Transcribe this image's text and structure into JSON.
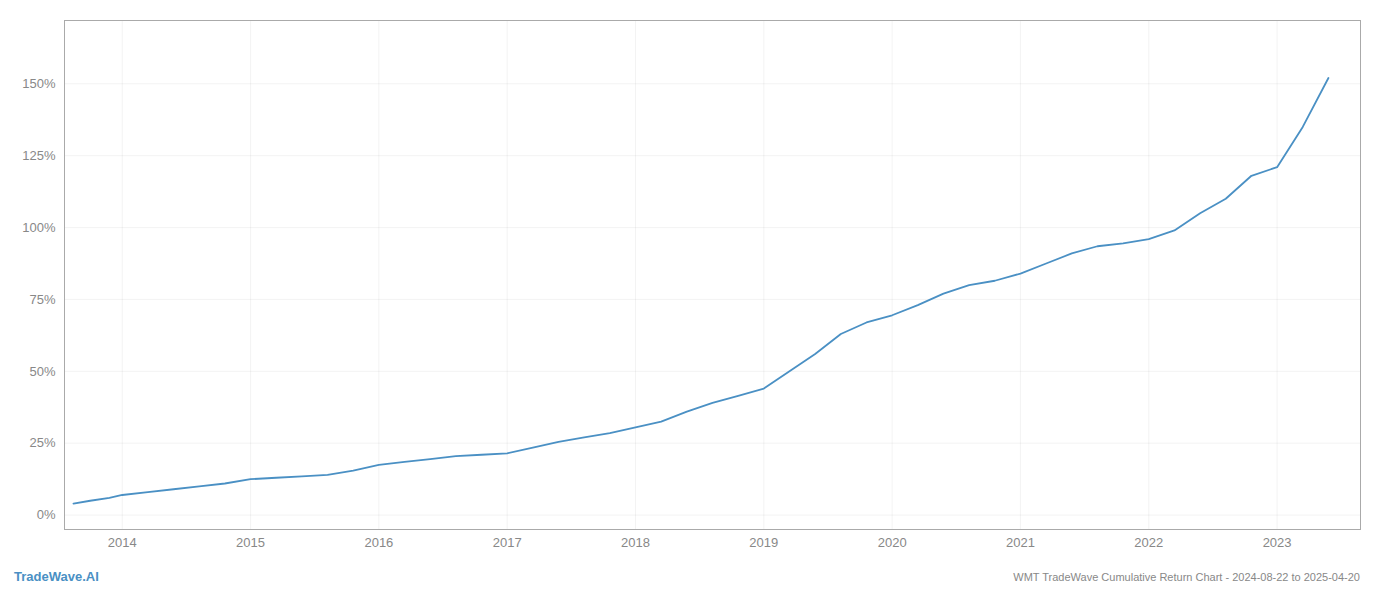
{
  "chart_data": {
    "type": "line",
    "title": "WMT TradeWave Cumulative Return Chart - 2024-08-22 to 2025-04-20",
    "annotations": [
      "TradeWave.AI"
    ],
    "color": "#4a90c4",
    "x": [
      2013.62,
      2013.75,
      2013.9,
      2014.0,
      2014.2,
      2014.4,
      2014.6,
      2014.8,
      2015.0,
      2015.2,
      2015.4,
      2015.6,
      2015.8,
      2016.0,
      2016.2,
      2016.4,
      2016.6,
      2016.8,
      2017.0,
      2017.2,
      2017.4,
      2017.6,
      2017.8,
      2018.0,
      2018.2,
      2018.4,
      2018.6,
      2018.8,
      2019.0,
      2019.2,
      2019.4,
      2019.6,
      2019.8,
      2020.0,
      2020.2,
      2020.4,
      2020.6,
      2020.8,
      2021.0,
      2021.2,
      2021.4,
      2021.6,
      2021.8,
      2022.0,
      2022.2,
      2022.4,
      2022.6,
      2022.8,
      2023.0,
      2023.2,
      2023.4
    ],
    "values": [
      0.04,
      0.05,
      0.06,
      0.07,
      0.08,
      0.09,
      0.1,
      0.11,
      0.125,
      0.13,
      0.135,
      0.14,
      0.155,
      0.175,
      0.185,
      0.195,
      0.205,
      0.21,
      0.215,
      0.235,
      0.255,
      0.27,
      0.285,
      0.305,
      0.325,
      0.36,
      0.39,
      0.415,
      0.44,
      0.5,
      0.56,
      0.63,
      0.67,
      0.695,
      0.73,
      0.77,
      0.8,
      0.815,
      0.84,
      0.875,
      0.91,
      0.935,
      0.945,
      0.96,
      0.99,
      1.05,
      1.1,
      1.18,
      1.21,
      1.35,
      1.52
    ],
    "xlim": [
      2013.55,
      2023.65
    ],
    "xticks": [
      2014,
      2015,
      2016,
      2017,
      2018,
      2019,
      2020,
      2021,
      2022,
      2023
    ],
    "ylim": [
      -0.05,
      1.72
    ],
    "yticks": [
      {
        "value": 0.0,
        "label": "0%"
      },
      {
        "value": 0.25,
        "label": "25%"
      },
      {
        "value": 0.5,
        "label": "50%"
      },
      {
        "value": 0.75,
        "label": "75%"
      },
      {
        "value": 1.0,
        "label": "100%"
      },
      {
        "value": 1.25,
        "label": "125%"
      },
      {
        "value": 1.5,
        "label": "150%"
      }
    ],
    "grid": true
  }
}
